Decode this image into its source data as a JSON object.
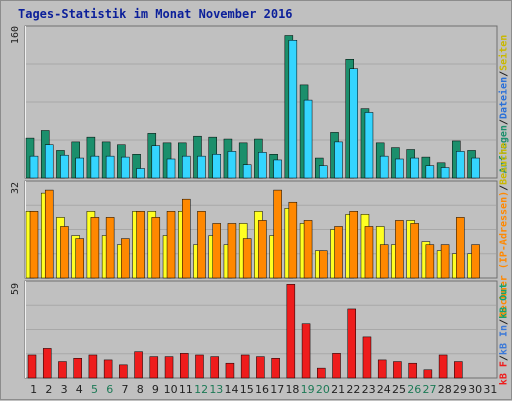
{
  "title": "Tages-Statistik im Monat November 2016",
  "colors": {
    "background": "#c0c0c0",
    "panel": "#c0c0c0",
    "gridline": "#a8a8a8",
    "anfragen": "#1b8f6c",
    "dateien": "#34d5ff",
    "seiten": "#ffff22",
    "rechner": "#ff8800",
    "kb_in": "#3a78d8",
    "kb_out": "#13a36e",
    "kb_f": "#ee1c1c",
    "axis_text": "#222222",
    "weekend_text": "#1d7a56",
    "title_text": "#0b1f9a"
  },
  "legends": {
    "top": [
      {
        "text": "Anfragen",
        "color": "#1b8f6c"
      },
      {
        "text": "/",
        "color": "#222222"
      },
      {
        "text": "Dateien",
        "color": "#2a70d8"
      },
      {
        "text": "/",
        "color": "#222222"
      },
      {
        "text": "Seiten",
        "color": "#c9b800"
      }
    ],
    "middle": [
      {
        "text": "Rechner (IP-Adressen)",
        "color": "#ff8800"
      },
      {
        "text": "/",
        "color": "#222222"
      },
      {
        "text": "Besuche",
        "color": "#c9b800"
      }
    ],
    "bottom": [
      {
        "text": "kB F",
        "color": "#ee1c1c"
      },
      {
        "text": "/",
        "color": "#222222"
      },
      {
        "text": "kB In",
        "color": "#3a78d8"
      },
      {
        "text": "/",
        "color": "#222222"
      },
      {
        "text": "kB Out",
        "color": "#13a36e"
      }
    ]
  },
  "chart_data": [
    {
      "type": "bar",
      "panel": "top",
      "ymax_label": "160",
      "ylim": [
        0,
        160
      ],
      "grid": true,
      "categories": [
        "1",
        "2",
        "3",
        "4",
        "5",
        "6",
        "7",
        "8",
        "9",
        "10",
        "11",
        "12",
        "13",
        "14",
        "15",
        "16",
        "17",
        "18",
        "19",
        "20",
        "21",
        "22",
        "23",
        "24",
        "25",
        "26",
        "27",
        "28",
        "29",
        "30",
        "31"
      ],
      "series": [
        {
          "name": "Anfragen",
          "values": [
            42,
            50,
            29,
            38,
            43,
            38,
            35,
            25,
            47,
            37,
            37,
            44,
            43,
            41,
            37,
            41,
            25,
            150,
            98,
            21,
            48,
            125,
            73,
            37,
            32,
            30,
            22,
            16,
            39,
            29,
            0
          ]
        },
        {
          "name": "Dateien",
          "values": [
            23,
            35,
            24,
            21,
            23,
            23,
            22,
            10,
            34,
            20,
            23,
            23,
            25,
            28,
            14,
            27,
            19,
            145,
            82,
            13,
            38,
            115,
            69,
            23,
            20,
            21,
            13,
            11,
            28,
            21,
            0
          ]
        },
        {
          "name": "Seiten",
          "values": [
            0,
            0,
            0,
            0,
            0,
            0,
            0,
            0,
            0,
            0,
            0,
            0,
            0,
            0,
            0,
            0,
            0,
            0,
            0,
            0,
            0,
            0,
            0,
            0,
            0,
            0,
            0,
            0,
            0,
            0,
            0
          ]
        }
      ]
    },
    {
      "type": "bar",
      "panel": "middle",
      "ymax_label": "32",
      "ylim": [
        0,
        32
      ],
      "grid": true,
      "categories": [
        "1",
        "2",
        "3",
        "4",
        "5",
        "6",
        "7",
        "8",
        "9",
        "10",
        "11",
        "12",
        "13",
        "14",
        "15",
        "16",
        "17",
        "18",
        "19",
        "20",
        "21",
        "22",
        "23",
        "24",
        "25",
        "26",
        "27",
        "28",
        "29",
        "30",
        "31"
      ],
      "series": [
        {
          "name": "Besuche",
          "values": [
            22,
            28,
            20,
            14,
            22,
            14,
            11,
            22,
            22,
            14,
            22,
            11,
            14,
            11,
            18,
            22,
            14,
            23,
            18,
            9,
            16,
            21,
            21,
            17,
            11,
            19,
            12,
            9,
            8,
            8,
            0
          ]
        },
        {
          "name": "Rechner (IP-Adressen)",
          "values": [
            22,
            29,
            17,
            13,
            20,
            20,
            13,
            22,
            20,
            22,
            26,
            22,
            18,
            18,
            13,
            19,
            29,
            25,
            19,
            9,
            17,
            22,
            17,
            11,
            19,
            18,
            11,
            11,
            20,
            11,
            0
          ]
        }
      ]
    },
    {
      "type": "bar",
      "panel": "bottom",
      "ymax_label": "59",
      "ylim": [
        0,
        59
      ],
      "grid": true,
      "categories": [
        "1",
        "2",
        "3",
        "4",
        "5",
        "6",
        "7",
        "8",
        "9",
        "10",
        "11",
        "12",
        "13",
        "14",
        "15",
        "16",
        "17",
        "18",
        "19",
        "20",
        "21",
        "22",
        "23",
        "24",
        "25",
        "26",
        "27",
        "28",
        "29",
        "30",
        "31"
      ],
      "series": [
        {
          "name": "kB F",
          "values": [
            14,
            18,
            10,
            12,
            14,
            11,
            8,
            16,
            13,
            13,
            15,
            14,
            13,
            9,
            14,
            13,
            12,
            57,
            33,
            6,
            15,
            42,
            25,
            11,
            10,
            9,
            5,
            14,
            10,
            0,
            0
          ]
        }
      ]
    }
  ],
  "x_axis": {
    "labels": [
      "1",
      "2",
      "3",
      "4",
      "5",
      "6",
      "7",
      "8",
      "9",
      "10",
      "11",
      "12",
      "13",
      "14",
      "15",
      "16",
      "17",
      "18",
      "19",
      "20",
      "21",
      "22",
      "23",
      "24",
      "25",
      "26",
      "27",
      "28",
      "29",
      "30",
      "31"
    ],
    "weekend_days": [
      "5",
      "6",
      "12",
      "13",
      "19",
      "20",
      "26",
      "27"
    ]
  }
}
